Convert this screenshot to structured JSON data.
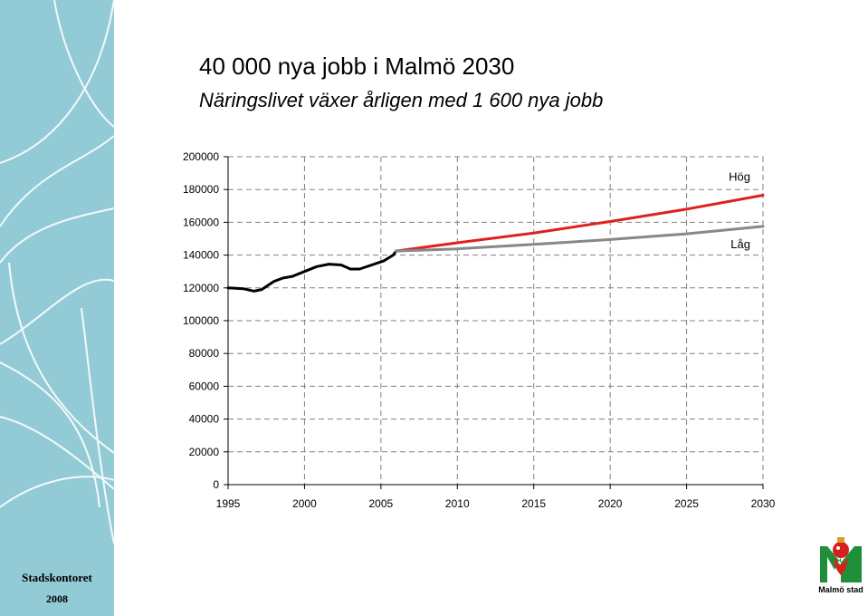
{
  "header": {
    "title": "40 000 nya jobb i Malmö 2030",
    "subtitle": "Näringslivet växer årligen med 1 600 nya jobb"
  },
  "sidebar": {
    "organization": "Stadskontoret",
    "year": "2008"
  },
  "logo": {
    "text": "Malmö stad"
  },
  "colors": {
    "sidebar": "#92cbd5",
    "historical": "#000000",
    "high": "#e02020",
    "low": "#888888",
    "grid": "#808080"
  },
  "chart_data": {
    "type": "line",
    "title": "",
    "xlabel": "",
    "ylabel": "",
    "xlim": [
      1995,
      2030
    ],
    "ylim": [
      0,
      200000
    ],
    "x_ticks": [
      1995,
      2000,
      2005,
      2010,
      2015,
      2020,
      2025,
      2030
    ],
    "y_ticks": [
      0,
      20000,
      40000,
      60000,
      80000,
      100000,
      120000,
      140000,
      160000,
      180000,
      200000
    ],
    "y_tick_labels": [
      "0",
      "20000",
      "40000",
      "60000",
      "80000",
      "100000",
      "120000",
      "140000",
      "160000",
      "180000",
      "200000"
    ],
    "grid": true,
    "series": [
      {
        "key": "historical",
        "color": "#000000",
        "x": [
          1995,
          1996,
          1996.7,
          1997.2,
          1998,
          1998.6,
          1999.2,
          2000,
          2000.8,
          2001.6,
          2002.4,
          2003,
          2003.6,
          2004.4,
          2005.2,
          2005.8,
          2006
        ],
        "y": [
          120000,
          119500,
          118000,
          119000,
          124000,
          126000,
          127000,
          130000,
          133000,
          134500,
          134000,
          131500,
          131500,
          134000,
          136500,
          140000,
          142500
        ]
      },
      {
        "key": "high",
        "name": "Hög",
        "color": "#e02020",
        "x": [
          2006,
          2010,
          2015,
          2020,
          2025,
          2030
        ],
        "y": [
          142500,
          147500,
          153500,
          160500,
          168000,
          176500
        ]
      },
      {
        "key": "low",
        "name": "Låg",
        "color": "#888888",
        "x": [
          2006,
          2010,
          2015,
          2020,
          2025,
          2030
        ],
        "y": [
          142500,
          143800,
          146500,
          149500,
          153000,
          157500
        ]
      }
    ]
  }
}
